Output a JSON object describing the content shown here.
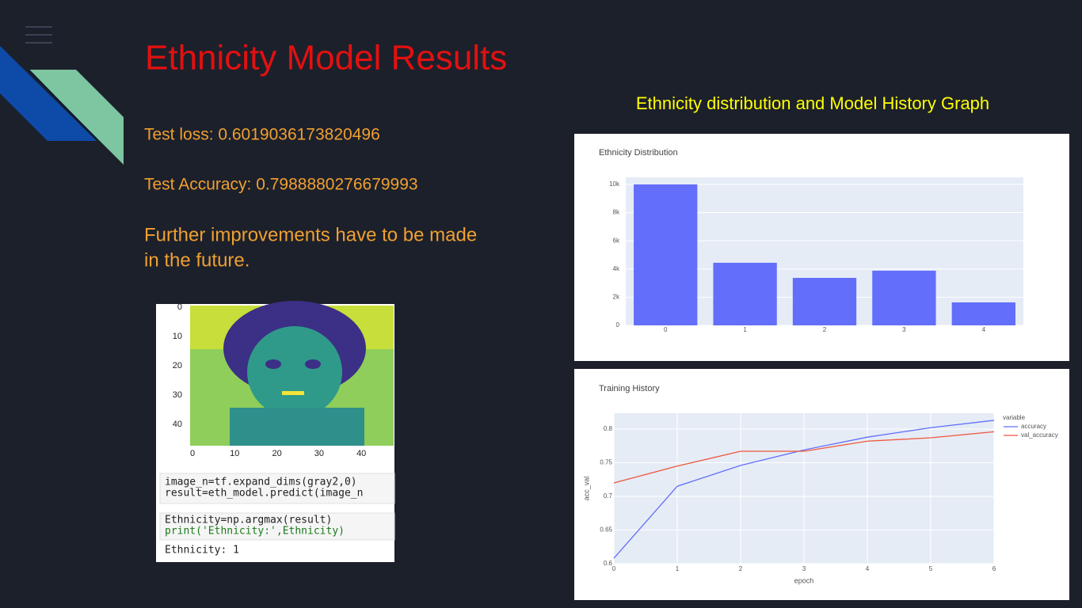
{
  "slide": {
    "title": "Ethnicity Model Results",
    "subtitle": "Ethnicity distribution and Model History Graph",
    "test_loss": "Test loss: 0.6019036173820496",
    "test_accuracy": "Test Accuracy: 0.7988880276679993",
    "note": [
      "Further improvements have to be made",
      "in the future."
    ]
  },
  "image": {
    "xticks": [
      0,
      10,
      20,
      30,
      40
    ],
    "yticks": [
      0,
      10,
      20,
      30,
      40
    ],
    "code": [
      [
        "image_n=tf.expand_dims(gray2,0)",
        "result=eth_model.predict(image_n"
      ],
      [
        "Ethnicity=np.argmax(result)",
        "print('Ethnicity:',Ethnicity)"
      ]
    ],
    "output": "Ethnicity: 1"
  },
  "chart_data": [
    {
      "type": "bar",
      "title": "Ethnicity Distribution",
      "categories": [
        "0",
        "1",
        "2",
        "3",
        "4"
      ],
      "values": [
        10000,
        4440,
        3370,
        3880,
        1630
      ],
      "color": "#636efa",
      "ylim": [
        0,
        10500
      ],
      "yticks": [
        0,
        {
          "value": 2000,
          "label": "2k"
        },
        {
          "value": 4000,
          "label": "4k"
        },
        {
          "value": 6000,
          "label": "6k"
        },
        {
          "value": 8000,
          "label": "8k"
        },
        {
          "value": 10000,
          "label": "10k"
        }
      ],
      "grid": true
    },
    {
      "type": "line",
      "title": "Training History",
      "x_label": "epoch",
      "y_label": "acc_val",
      "legend_title": "variable",
      "x": [
        0,
        1,
        2,
        3,
        4,
        5,
        6
      ],
      "series": [
        {
          "name": "accuracy",
          "color": "#636efa",
          "values": [
            0.608,
            0.715,
            0.746,
            0.769,
            0.788,
            0.802,
            0.813
          ]
        },
        {
          "name": "val_accuracy",
          "color": "#ef553b",
          "values": [
            0.72,
            0.745,
            0.767,
            0.767,
            0.782,
            0.787,
            0.796
          ]
        }
      ],
      "xlim": [
        0,
        6
      ],
      "xticks": [
        0,
        1,
        2,
        3,
        4,
        5,
        6
      ],
      "ylim": [
        0.6,
        0.8235
      ],
      "yticks": [
        0.6,
        0.65,
        0.7,
        0.75,
        0.8
      ],
      "grid": true,
      "legend": "right"
    }
  ]
}
